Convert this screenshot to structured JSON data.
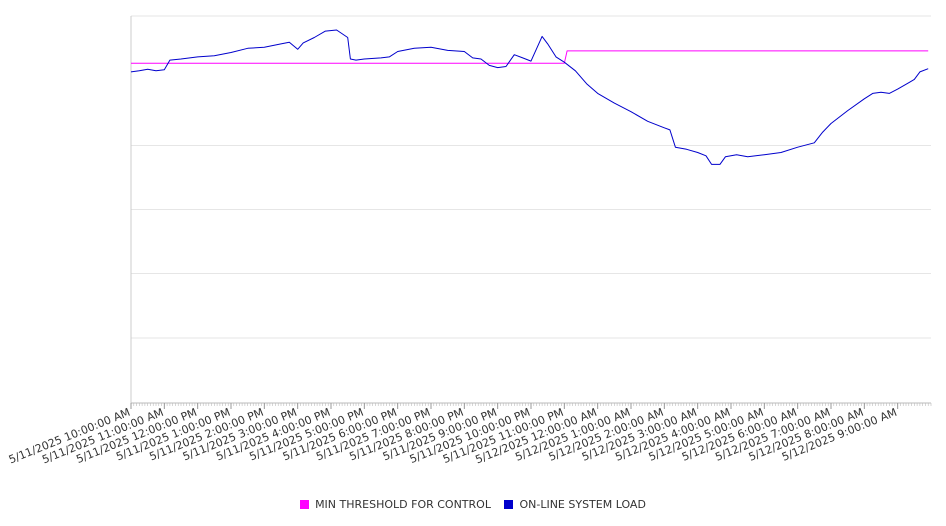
{
  "chart_data": {
    "type": "line",
    "title": "",
    "xlabel": "",
    "ylabel": "",
    "x_tick_labels": [
      "5/11/2025 10:00:00 AM",
      "5/11/2025 11:00:00 AM",
      "5/11/2025 12:00:00 PM",
      "5/11/2025 1:00:00 PM",
      "5/11/2025 2:00:00 PM",
      "5/11/2025 3:00:00 PM",
      "5/11/2025 4:00:00 PM",
      "5/11/2025 5:00:00 PM",
      "5/11/2025 6:00:00 PM",
      "5/11/2025 7:00:00 PM",
      "5/11/2025 8:00:00 PM",
      "5/11/2025 9:00:00 PM",
      "5/11/2025 10:00:00 PM",
      "5/11/2025 11:00:00 PM",
      "5/12/2025 12:00:00 AM",
      "5/12/2025 1:00:00 AM",
      "5/12/2025 2:00:00 AM",
      "5/12/2025 3:00:00 AM",
      "5/12/2025 4:00:00 AM",
      "5/12/2025 5:00:00 AM",
      "5/12/2025 6:00:00 AM",
      "5/12/2025 7:00:00 AM",
      "5/12/2025 8:00:00 AM",
      "5/12/2025 9:00:00 AM"
    ],
    "y_tick_labels_visible": false,
    "grid": true,
    "legend": "bottom",
    "series": [
      {
        "name": "MIN THRESHOLD FOR CONTROL",
        "color": "#ff00ff",
        "points": [
          [
            "5/11/2025 10:00:00 AM",
            84
          ],
          [
            "5/11/2025 10:30:00 PM",
            84
          ],
          [
            "5/11/2025 11:00:00 PM",
            84
          ],
          [
            "5/11/2025 11:05:00 PM",
            72.5
          ],
          [
            "5/12/2025 9:55:00 AM",
            72.5
          ]
        ]
      },
      {
        "name": "ON-LINE SYSTEM LOAD",
        "color": "#0000cc",
        "points": [
          [
            "5/11/2025 10:00:00 AM",
            92
          ],
          [
            "5/11/2025 10:15:00 AM",
            91
          ],
          [
            "5/11/2025 10:30:00 AM",
            89.5
          ],
          [
            "5/11/2025 10:45:00 AM",
            91
          ],
          [
            "5/11/2025 11:00:00 AM",
            90
          ],
          [
            "5/11/2025 11:10:00 AM",
            81
          ],
          [
            "5/11/2025 11:30:00 AM",
            80
          ],
          [
            "5/11/2025 12:00:00 PM",
            78
          ],
          [
            "5/11/2025 12:30:00 PM",
            77
          ],
          [
            "5/11/2025 1:00:00 PM",
            74
          ],
          [
            "5/11/2025 1:30:00 PM",
            70
          ],
          [
            "5/11/2025 2:00:00 PM",
            69
          ],
          [
            "5/11/2025 2:30:00 PM",
            66
          ],
          [
            "5/11/2025 2:45:00 PM",
            64.5
          ],
          [
            "5/11/2025 3:00:00 PM",
            71
          ],
          [
            "5/11/2025 3:10:00 PM",
            65
          ],
          [
            "5/11/2025 3:30:00 PM",
            60
          ],
          [
            "5/11/2025 3:50:00 PM",
            54
          ],
          [
            "5/11/2025 4:10:00 PM",
            53
          ],
          [
            "5/11/2025 4:30:00 PM",
            60
          ],
          [
            "5/11/2025 4:35:00 PM",
            80
          ],
          [
            "5/11/2025 4:45:00 PM",
            81
          ],
          [
            "5/11/2025 5:00:00 PM",
            80
          ],
          [
            "5/11/2025 5:30:00 PM",
            79
          ],
          [
            "5/11/2025 5:45:00 PM",
            78
          ],
          [
            "5/11/2025 6:00:00 PM",
            73
          ],
          [
            "5/11/2025 6:30:00 PM",
            70
          ],
          [
            "5/11/2025 7:00:00 PM",
            69
          ],
          [
            "5/11/2025 7:30:00 PM",
            72
          ],
          [
            "5/11/2025 8:00:00 PM",
            73
          ],
          [
            "5/11/2025 8:15:00 PM",
            79
          ],
          [
            "5/11/2025 8:30:00 PM",
            80
          ],
          [
            "5/11/2025 8:45:00 PM",
            86
          ],
          [
            "5/11/2025 9:00:00 PM",
            88
          ],
          [
            "5/11/2025 9:15:00 PM",
            87
          ],
          [
            "5/11/2025 9:30:00 PM",
            76
          ],
          [
            "5/11/2025 9:45:00 PM",
            79
          ],
          [
            "5/11/2025 10:00:00 PM",
            82
          ],
          [
            "5/11/2025 10:20:00 PM",
            59
          ],
          [
            "5/11/2025 10:30:00 PM",
            66
          ],
          [
            "5/11/2025 10:45:00 PM",
            78
          ],
          [
            "5/11/2025 11:00:00 PM",
            83
          ],
          [
            "5/11/2025 11:20:00 PM",
            91
          ],
          [
            "5/11/2025 11:40:00 PM",
            103
          ],
          [
            "5/12/2025 12:00:00 AM",
            112
          ],
          [
            "5/12/2025 12:30:00 AM",
            121
          ],
          [
            "5/12/2025 1:00:00 AM",
            129
          ],
          [
            "5/12/2025 1:30:00 AM",
            138
          ],
          [
            "5/12/2025 2:00:00 AM",
            144
          ],
          [
            "5/12/2025 2:10:00 AM",
            146
          ],
          [
            "5/12/2025 2:20:00 AM",
            162
          ],
          [
            "5/12/2025 2:40:00 AM",
            164
          ],
          [
            "5/12/2025 3:00:00 AM",
            167
          ],
          [
            "5/12/2025 3:15:00 AM",
            170
          ],
          [
            "5/12/2025 3:25:00 AM",
            178
          ],
          [
            "5/12/2025 3:40:00 AM",
            178
          ],
          [
            "5/12/2025 3:50:00 AM",
            171
          ],
          [
            "5/12/2025 4:10:00 AM",
            169
          ],
          [
            "5/12/2025 4:30:00 AM",
            171
          ],
          [
            "5/12/2025 5:00:00 AM",
            169
          ],
          [
            "5/12/2025 5:30:00 AM",
            167
          ],
          [
            "5/12/2025 6:00:00 AM",
            162
          ],
          [
            "5/12/2025 6:30:00 AM",
            158
          ],
          [
            "5/12/2025 6:45:00 AM",
            148
          ],
          [
            "5/12/2025 7:00:00 AM",
            140
          ],
          [
            "5/12/2025 7:30:00 AM",
            128
          ],
          [
            "5/12/2025 8:00:00 AM",
            117
          ],
          [
            "5/12/2025 8:15:00 AM",
            112
          ],
          [
            "5/12/2025 8:30:00 AM",
            111
          ],
          [
            "5/12/2025 8:45:00 AM",
            112
          ],
          [
            "5/12/2025 9:00:00 AM",
            108
          ],
          [
            "5/12/2025 9:20:00 AM",
            102
          ],
          [
            "5/12/2025 9:30:00 AM",
            99
          ],
          [
            "5/12/2025 9:40:00 AM",
            92
          ],
          [
            "5/12/2025 9:55:00 AM",
            89
          ]
        ]
      }
    ]
  }
}
